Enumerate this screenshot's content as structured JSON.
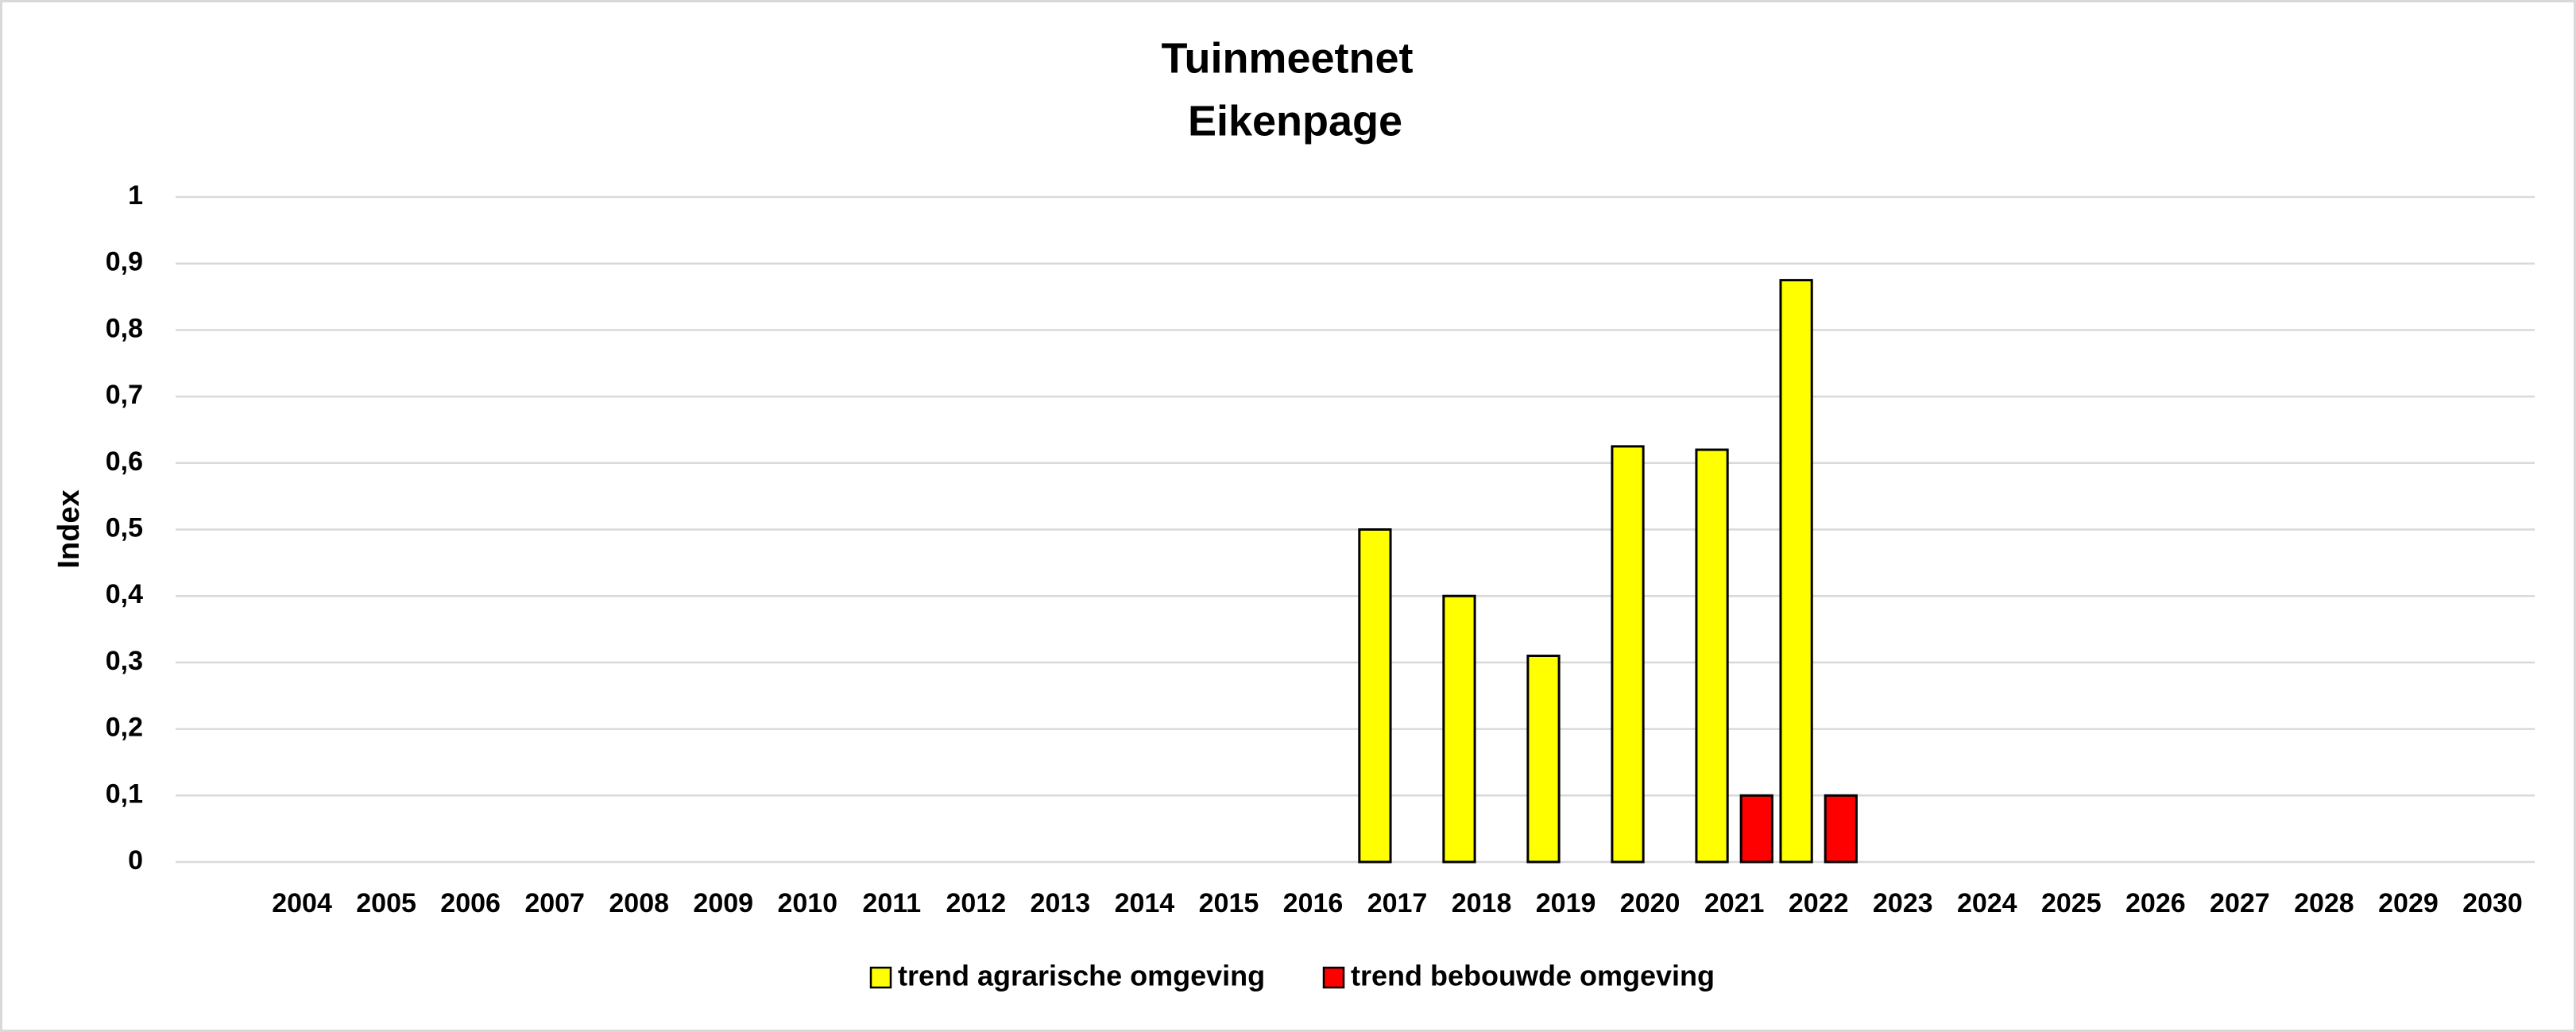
{
  "chart_data": {
    "type": "bar",
    "title": "Tuinmeetnet",
    "subtitle": "Eikenpage",
    "y_label": "Index",
    "categories": [
      null,
      "2004",
      "2005",
      "2006",
      "2007",
      "2008",
      "2009",
      "2010",
      "2011",
      "2012",
      "2013",
      "2014",
      "2015",
      "2016",
      "2017",
      "2018",
      "2019",
      "2020",
      "2021",
      "2022",
      "2023",
      "2024",
      "2025",
      "2026",
      "2027",
      "2028",
      "2029",
      "2030"
    ],
    "series": [
      {
        "name": "trend agrarische omgeving",
        "color": "#ffff00",
        "values": [
          null,
          null,
          null,
          null,
          null,
          null,
          null,
          null,
          null,
          null,
          null,
          null,
          null,
          null,
          0.5,
          0.4,
          0.31,
          0.625,
          0.62,
          0.875,
          null,
          null,
          null,
          null,
          null,
          null,
          null,
          null
        ]
      },
      {
        "name": "trend bebouwde omgeving",
        "color": "#ff0000",
        "values": [
          null,
          null,
          null,
          null,
          null,
          null,
          null,
          null,
          null,
          null,
          null,
          null,
          null,
          null,
          null,
          null,
          null,
          null,
          0.1,
          0.1,
          null,
          null,
          null,
          null,
          null,
          null,
          null,
          null
        ]
      }
    ],
    "ylim": [
      0,
      1
    ],
    "yticks": [
      0,
      {
        "value": 0.1,
        "label": "0,1"
      },
      {
        "value": 0.2,
        "label": "0,2"
      },
      {
        "value": 0.3,
        "label": "0,3"
      },
      {
        "value": 0.4,
        "label": "0,4"
      },
      {
        "value": 0.5,
        "label": "0,5"
      },
      {
        "value": 0.6,
        "label": "0,6"
      },
      {
        "value": 0.7,
        "label": "0,7"
      },
      {
        "value": 0.8,
        "label": "0,8"
      },
      {
        "value": 0.9,
        "label": "0,9"
      },
      1
    ],
    "grid": true,
    "legend": "bottom"
  }
}
